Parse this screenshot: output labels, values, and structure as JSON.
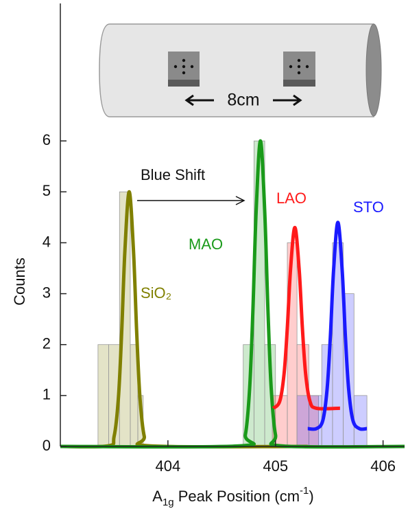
{
  "chart_data": {
    "type": "histogram",
    "x_label": [
      "A",
      "1g",
      " Peak Position (cm",
      "-1",
      ")"
    ],
    "y_label": "Counts",
    "xlim": [
      403.0,
      406.2
    ],
    "ylim": [
      0,
      8.7
    ],
    "xticks": [
      404,
      405,
      406
    ],
    "yticks": [
      0,
      1,
      2,
      3,
      4,
      5,
      6
    ],
    "annotations": [
      "Blue Shift",
      "8cm"
    ],
    "series": [
      {
        "name": "SiO₂",
        "color": "#808000",
        "bins": [
          403.35,
          403.45,
          403.55,
          403.65,
          403.72,
          403.77
        ],
        "counts": [
          2,
          2,
          5,
          2,
          1
        ],
        "fit": {
          "x": [
            403.0,
            403.44,
            403.5,
            403.54,
            403.57,
            403.6,
            403.64,
            403.68,
            403.71,
            403.74,
            403.78,
            403.84,
            405.3
          ],
          "values": [
            0,
            0.01,
            0.2,
            0.96,
            2.23,
            3.84,
            5.0,
            3.84,
            2.23,
            0.96,
            0.2,
            0.01,
            0
          ]
        }
      },
      {
        "name": "MAO",
        "color": "#1a9a1a",
        "bins": [
          404.7,
          404.8,
          404.9,
          405.0
        ],
        "counts": [
          2,
          6,
          2
        ],
        "fit": {
          "x": [
            403.0,
            404.66,
            404.72,
            404.76,
            404.79,
            404.82,
            404.86,
            404.9,
            404.93,
            404.96,
            405.0,
            405.06,
            406.2
          ],
          "values": [
            0,
            0.01,
            0.23,
            1.15,
            2.67,
            4.61,
            6.0,
            4.61,
            2.67,
            1.15,
            0.23,
            0.01,
            0
          ]
        }
      },
      {
        "name": "LAO",
        "color": "#ff1a1a",
        "bins": [
          404.97,
          405.11,
          405.2,
          405.31,
          405.4
        ],
        "counts": [
          1,
          4,
          2,
          1
        ],
        "fit": {
          "x": [
            404.98,
            405.04,
            405.08,
            405.11,
            405.14,
            405.18,
            405.22,
            405.25,
            405.28,
            405.32,
            405.38,
            405.6
          ],
          "values": [
            0.75,
            0.89,
            1.43,
            2.33,
            3.48,
            4.3,
            3.48,
            2.33,
            1.43,
            0.89,
            0.75,
            0.75
          ]
        }
      },
      {
        "name": "STO",
        "color": "#1a1aff",
        "bins": [
          405.2,
          405.43,
          405.53,
          405.63,
          405.73,
          405.85
        ],
        "counts": [
          1,
          2,
          4,
          3,
          1
        ],
        "fit": {
          "x": [
            405.3,
            405.38,
            405.44,
            405.48,
            405.51,
            405.54,
            405.58,
            405.62,
            405.65,
            405.68,
            405.72,
            405.78,
            405.85
          ],
          "values": [
            0.35,
            0.35,
            0.51,
            1.13,
            2.15,
            3.46,
            4.4,
            3.46,
            2.15,
            1.13,
            0.51,
            0.35,
            0.35
          ]
        }
      }
    ]
  }
}
